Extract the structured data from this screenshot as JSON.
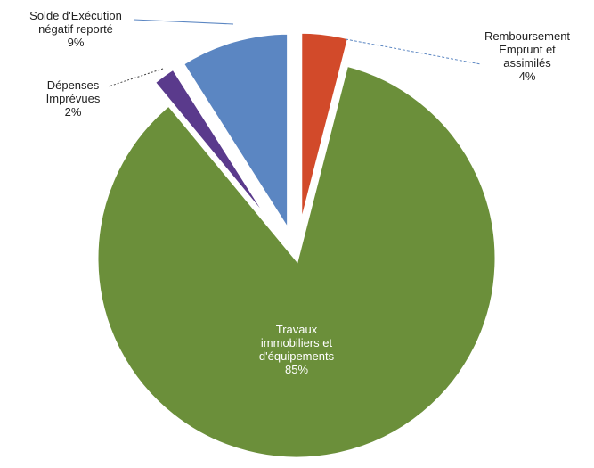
{
  "chart_data": {
    "type": "pie",
    "title": "",
    "legend": "none",
    "slices": [
      {
        "label_lines": [
          "Remboursement",
          "Emprunt et",
          "assimilés"
        ],
        "value": 4,
        "value_label": "4%",
        "color": "#d24a2a",
        "exploded": true
      },
      {
        "label_lines": [
          "Travaux",
          "immobiliers et",
          "d'équipements"
        ],
        "value": 85,
        "value_label": "85%",
        "color": "#6b8f3a",
        "exploded": false
      },
      {
        "label_lines": [
          "Dépenses",
          "Imprévues"
        ],
        "value": 2,
        "value_label": "2%",
        "color": "#5a3a8c",
        "exploded": true
      },
      {
        "label_lines": [
          "Solde d'Exécution",
          "négatif reporté"
        ],
        "value": 9,
        "value_label": "9%",
        "color": "#5b86c2",
        "exploded": true
      }
    ]
  }
}
